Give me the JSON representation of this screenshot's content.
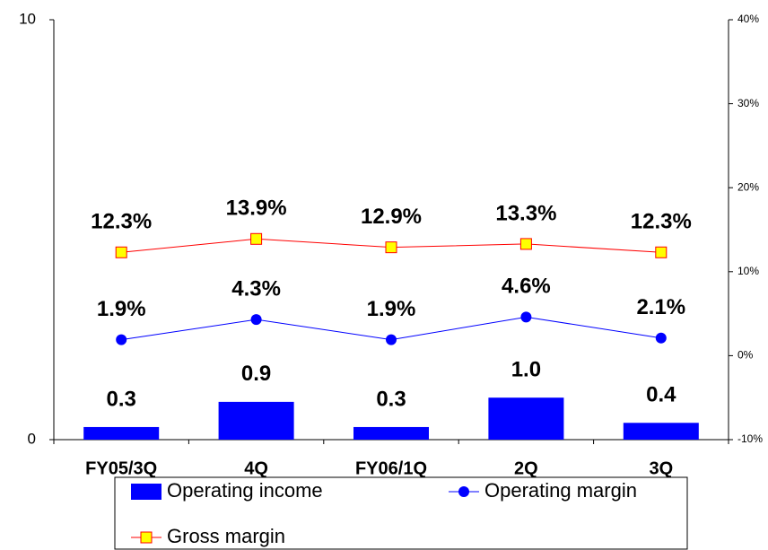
{
  "chart_data": {
    "type": "bar",
    "categories": [
      "FY05/3Q",
      "4Q",
      "FY06/1Q",
      "2Q",
      "3Q"
    ],
    "series": [
      {
        "name": "Operating income",
        "type": "bar",
        "color": "#0000ff",
        "values": [
          0.3,
          0.9,
          0.3,
          1.0,
          0.4
        ],
        "value_labels": [
          "0.3",
          "0.9",
          "0.3",
          "1.0",
          "0.4"
        ]
      },
      {
        "name": "Operating margin",
        "type": "line",
        "axis": "y2",
        "color": "#0000ff",
        "marker": "circle",
        "marker_color": "#0000ff",
        "values": [
          1.9,
          4.3,
          1.9,
          4.6,
          2.1
        ],
        "value_labels": [
          "1.9%",
          "4.3%",
          "1.9%",
          "4.6%",
          "2.1%"
        ]
      },
      {
        "name": "Gross margin",
        "type": "line",
        "axis": "y2",
        "color": "#ff0000",
        "marker": "square",
        "marker_color": "#ffff00",
        "values": [
          12.3,
          13.9,
          12.9,
          13.3,
          12.3
        ],
        "value_labels": [
          "12.3%",
          "13.9%",
          "12.9%",
          "13.3%",
          "12.3%"
        ]
      }
    ],
    "ylim": [
      0,
      10
    ],
    "yticks": [
      0,
      10
    ],
    "y2lim": [
      -10,
      40
    ],
    "y2ticks": [
      {
        "value": -10,
        "label": "-10%"
      },
      {
        "value": 0,
        "label": "0%"
      },
      {
        "value": 10,
        "label": "10%"
      },
      {
        "value": 20,
        "label": "20%"
      },
      {
        "value": 30,
        "label": "30%"
      },
      {
        "value": 40,
        "label": "40%"
      }
    ],
    "legend": "bottom"
  }
}
